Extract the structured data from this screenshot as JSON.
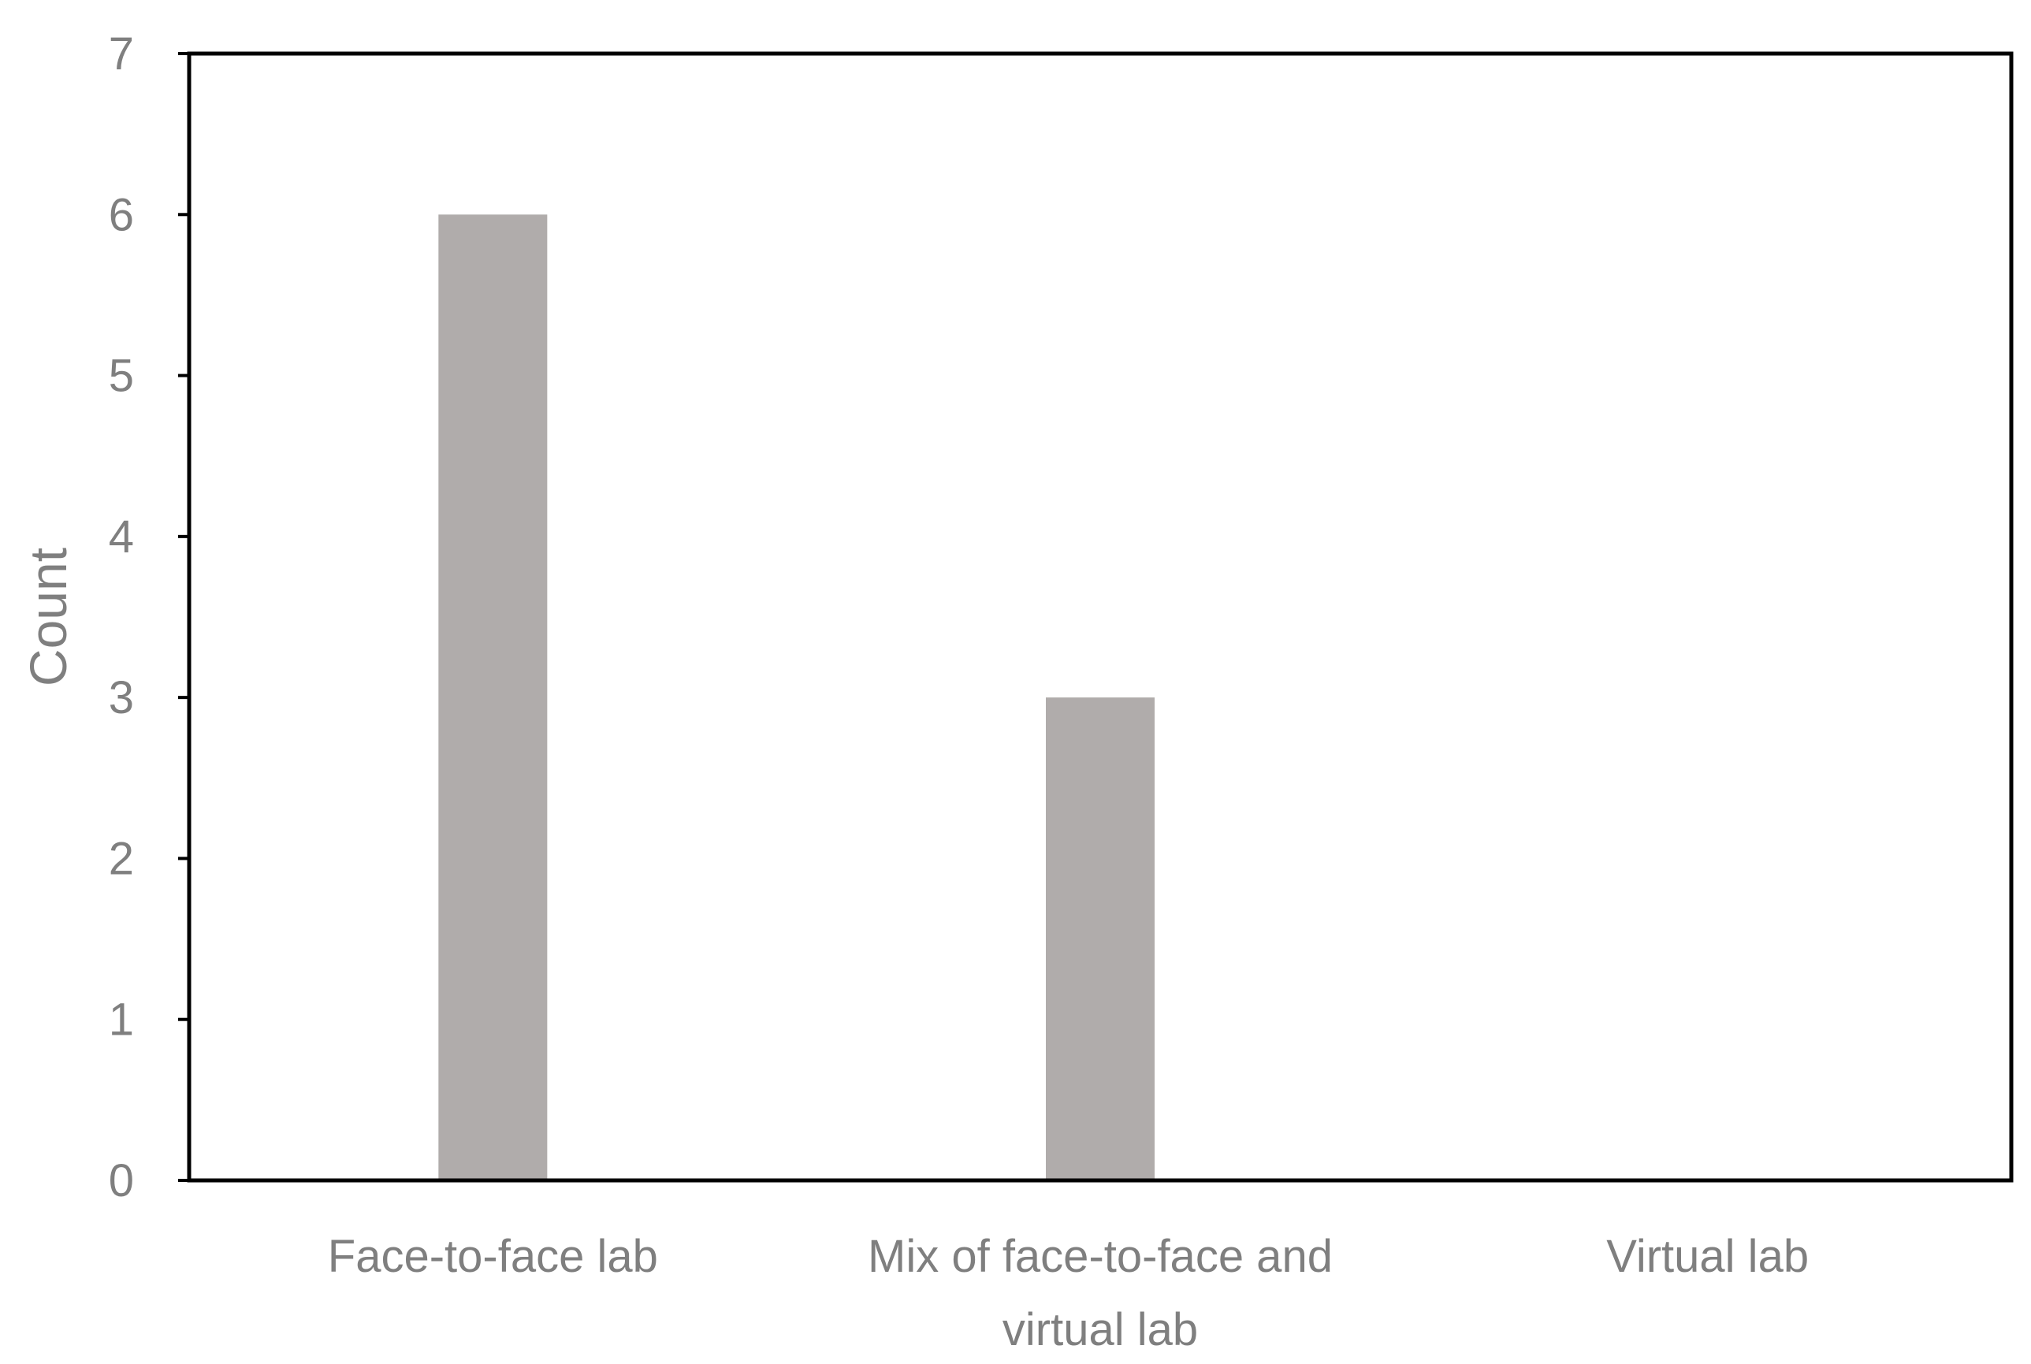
{
  "chart_data": {
    "type": "bar",
    "categories": [
      "Face-to-face lab",
      "Mix of face-to-face and virtual lab",
      "Virtual lab"
    ],
    "category_lines": [
      [
        "Face-to-face lab"
      ],
      [
        "Mix of face-to-face and",
        "virtual lab"
      ],
      [
        "Virtual lab"
      ]
    ],
    "values": [
      6,
      3,
      0
    ],
    "ylabel": "Count",
    "xlabel": "",
    "ylim": [
      0,
      7
    ],
    "yticks": [
      0,
      1,
      2,
      3,
      4,
      5,
      6,
      7
    ],
    "bar_color": "#b0acab",
    "grid": false,
    "legend": "none"
  }
}
